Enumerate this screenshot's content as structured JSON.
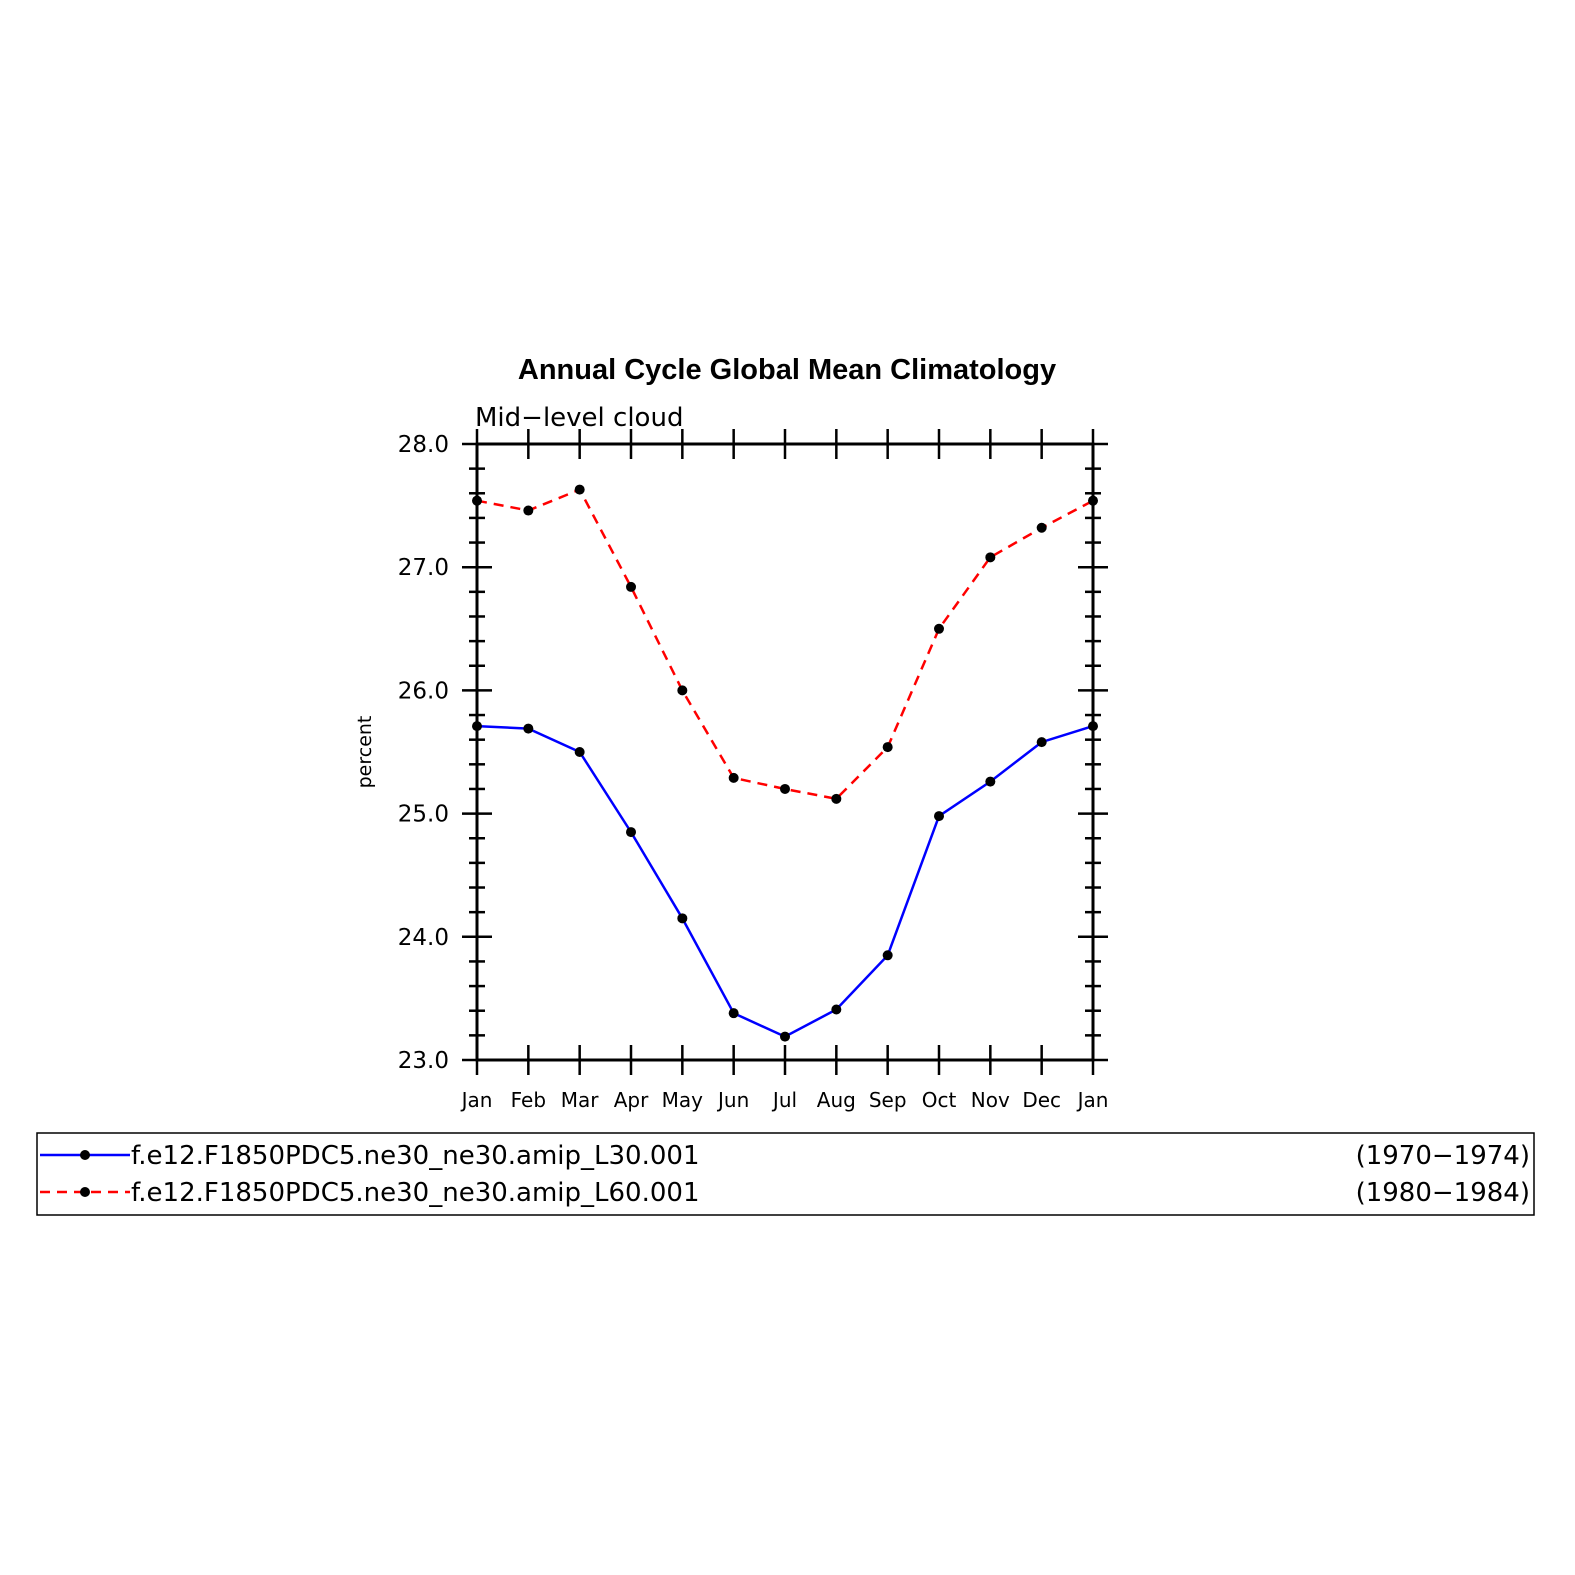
{
  "chart_data": {
    "type": "line",
    "title": "Annual Cycle Global Mean Climatology",
    "subtitle": "Mid−level  cloud",
    "xlabel": "",
    "ylabel": "percent",
    "categories": [
      "Jan",
      "Feb",
      "Mar",
      "Apr",
      "May",
      "Jun",
      "Jul",
      "Aug",
      "Sep",
      "Oct",
      "Nov",
      "Dec",
      "Jan"
    ],
    "ylim": [
      23.0,
      28.0
    ],
    "yticks": [
      "23.0",
      "24.0",
      "25.0",
      "26.0",
      "27.0",
      "28.0"
    ],
    "yticks_values": [
      23.0,
      24.0,
      25.0,
      26.0,
      27.0,
      28.0
    ],
    "grid": false,
    "legend_position": "bottom",
    "series": [
      {
        "name": "f.e12.F1850PDC5.ne30_ne30.amip_L30.001",
        "period": "(1970−1974)",
        "color": "#0000ff",
        "dash": "solid",
        "marker": "dot",
        "values": [
          25.71,
          25.69,
          25.5,
          24.85,
          24.15,
          23.38,
          23.19,
          23.41,
          23.85,
          24.98,
          25.26,
          25.58,
          25.71
        ]
      },
      {
        "name": "f.e12.F1850PDC5.ne30_ne30.amip_L60.001",
        "period": "(1980−1984)",
        "color": "#ff0000",
        "dash": "dashed",
        "marker": "dot",
        "values": [
          27.54,
          27.46,
          27.63,
          26.84,
          26.0,
          25.29,
          25.2,
          25.12,
          25.54,
          26.5,
          27.08,
          27.32,
          27.54
        ]
      }
    ]
  }
}
